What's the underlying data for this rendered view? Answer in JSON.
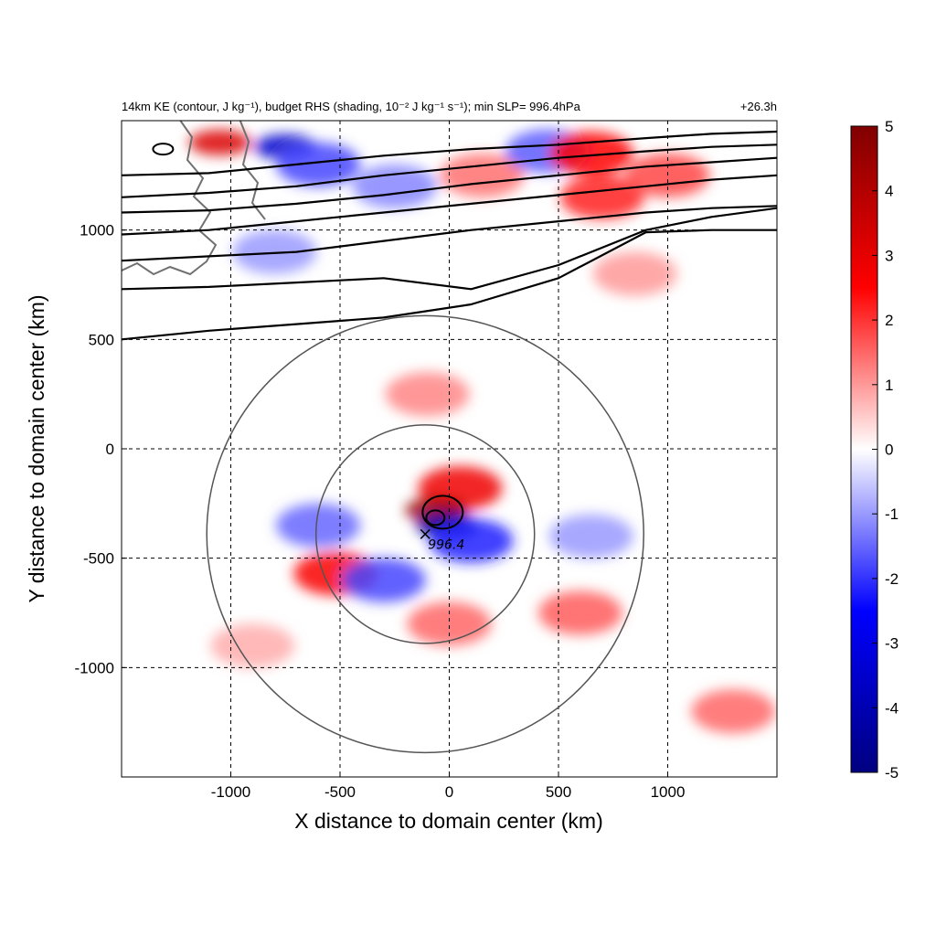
{
  "chart_data": {
    "type": "heatmap",
    "title": "14km KE (contour, J kg⁻¹), budget RHS (shading, 10⁻² J kg⁻¹ s⁻¹); min SLP= 996.4hPa",
    "time_label": "+26.3h",
    "xlabel": "X distance to domain center (km)",
    "ylabel": "Y distance to domain center (km)",
    "xlim": [
      -1500,
      1500
    ],
    "ylim": [
      -1500,
      1500
    ],
    "x_ticks": [
      -1000,
      -500,
      0,
      500,
      1000
    ],
    "y_ticks": [
      -1000,
      -500,
      0,
      500,
      1000
    ],
    "x_tick_labels": [
      "-1000",
      "-500",
      "0",
      "500",
      "1000"
    ],
    "y_tick_labels": [
      "-1000",
      "-500",
      "0",
      "500",
      "1000"
    ],
    "grid": "dashed",
    "colorbar": {
      "range": [
        -5,
        5
      ],
      "ticks": [
        5,
        4,
        3,
        2,
        1,
        0,
        -1,
        -2,
        -3,
        -4,
        -5
      ],
      "tick_labels": [
        "5",
        "4",
        "3",
        "2",
        "1",
        "0",
        "-1",
        "-2",
        "-3",
        "-4",
        "-5"
      ],
      "colormap": [
        "#000080",
        "#0000ff",
        "#ffffff",
        "#ff0000",
        "#800000"
      ]
    },
    "storm_center": {
      "x": -110,
      "y": -390,
      "min_slp_label": "996.4"
    },
    "range_rings_km": [
      500,
      1000
    ],
    "shading_features": [
      {
        "x": -1050,
        "y": 1400,
        "value": 3.2
      },
      {
        "x": -750,
        "y": 1380,
        "value": -3.5
      },
      {
        "x": -600,
        "y": 1300,
        "value": -1.8
      },
      {
        "x": -250,
        "y": 1200,
        "value": -1.2
      },
      {
        "x": 150,
        "y": 1250,
        "value": 1.4
      },
      {
        "x": 450,
        "y": 1360,
        "value": -1.6
      },
      {
        "x": 650,
        "y": 1350,
        "value": 2.5
      },
      {
        "x": 700,
        "y": 1150,
        "value": 2.2
      },
      {
        "x": 1000,
        "y": 1250,
        "value": 1.8
      },
      {
        "x": 850,
        "y": 800,
        "value": 1.0
      },
      {
        "x": -800,
        "y": 900,
        "value": -1.0
      },
      {
        "x": -100,
        "y": 250,
        "value": 1.2
      },
      {
        "x": 50,
        "y": -180,
        "value": 2.8
      },
      {
        "x": -60,
        "y": -280,
        "value": 4.5
      },
      {
        "x": -10,
        "y": -350,
        "value": -4.5
      },
      {
        "x": 100,
        "y": -420,
        "value": -2.2
      },
      {
        "x": -600,
        "y": -350,
        "value": -1.5
      },
      {
        "x": -520,
        "y": -570,
        "value": 2.6
      },
      {
        "x": -300,
        "y": -600,
        "value": -1.8
      },
      {
        "x": 0,
        "y": -800,
        "value": 1.5
      },
      {
        "x": 600,
        "y": -750,
        "value": 1.6
      },
      {
        "x": 650,
        "y": -400,
        "value": -1.0
      },
      {
        "x": 1300,
        "y": -1200,
        "value": 1.5
      },
      {
        "x": -900,
        "y": -900,
        "value": 0.8
      }
    ],
    "ke_contours": [
      {
        "x": [
          -1500,
          -1100,
          -700,
          -300,
          100,
          500,
          900,
          1200,
          1500
        ],
        "y": [
          1250,
          1260,
          1300,
          1340,
          1370,
          1390,
          1420,
          1440,
          1450
        ]
      },
      {
        "x": [
          -1500,
          -1100,
          -700,
          -300,
          100,
          500,
          900,
          1200,
          1500
        ],
        "y": [
          1150,
          1170,
          1200,
          1250,
          1290,
          1330,
          1360,
          1380,
          1390
        ]
      },
      {
        "x": [
          -1500,
          -1100,
          -700,
          -300,
          100,
          500,
          900,
          1200,
          1500
        ],
        "y": [
          1080,
          1090,
          1120,
          1160,
          1210,
          1250,
          1290,
          1310,
          1330
        ]
      },
      {
        "x": [
          -1500,
          -1100,
          -700,
          -300,
          100,
          500,
          900,
          1200,
          1500
        ],
        "y": [
          980,
          1000,
          1040,
          1080,
          1120,
          1160,
          1200,
          1230,
          1250
        ]
      },
      {
        "x": [
          -1500,
          -1100,
          -700,
          -300,
          100,
          500,
          900,
          1200,
          1500
        ],
        "y": [
          860,
          880,
          900,
          950,
          1000,
          1040,
          1080,
          1100,
          1110
        ]
      },
      {
        "x": [
          -1500,
          -1100,
          -700,
          -300,
          100,
          500,
          900,
          1200,
          1500
        ],
        "y": [
          730,
          740,
          760,
          780,
          730,
          840,
          1000,
          1060,
          1100
        ]
      },
      {
        "x": [
          -1500,
          -1100,
          -700,
          -300,
          100,
          500,
          900,
          1200,
          1500
        ],
        "y": [
          500,
          540,
          570,
          600,
          660,
          780,
          990,
          1000,
          1000
        ]
      }
    ]
  }
}
